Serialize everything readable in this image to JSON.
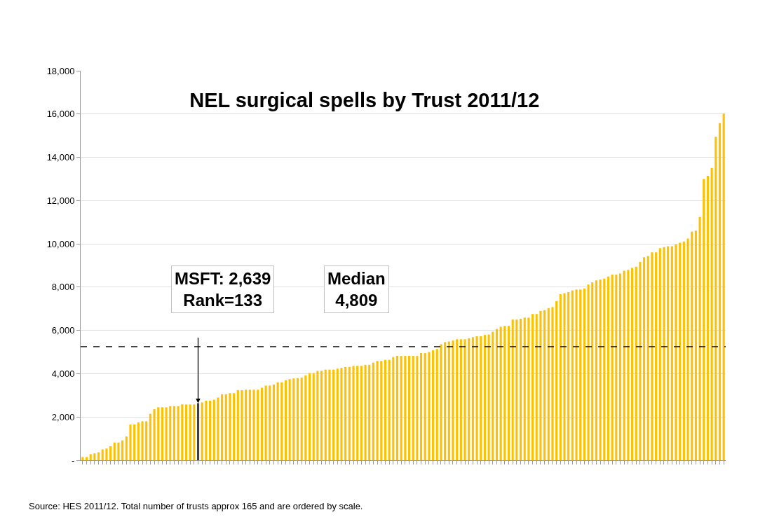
{
  "chart_data": {
    "type": "bar",
    "title": "NEL surgical spells by Trust 2011/12",
    "categories": [
      null,
      null,
      null,
      null,
      null,
      null,
      null,
      null,
      null,
      null,
      null,
      null,
      null,
      null,
      null,
      null,
      null,
      null,
      null,
      null,
      null,
      null,
      null,
      null,
      null,
      null,
      null,
      null,
      null,
      null,
      null,
      null,
      null,
      null,
      null,
      null,
      null,
      null,
      null,
      null,
      null,
      null,
      null,
      null,
      null,
      null,
      null,
      null,
      null,
      null,
      null,
      null,
      null,
      null,
      null,
      null,
      null,
      null,
      null,
      null,
      null,
      null,
      null,
      null,
      null,
      null,
      null,
      null,
      null,
      null,
      null,
      null,
      null,
      null,
      null,
      null,
      null,
      null,
      null,
      null,
      null,
      null,
      null,
      null,
      null,
      null,
      null,
      null,
      null,
      null,
      null,
      null,
      null,
      null,
      null,
      null,
      null,
      null,
      null,
      null,
      null,
      null,
      null,
      null,
      null,
      null,
      null,
      null,
      null,
      null,
      null,
      null,
      null,
      null,
      null,
      null,
      null,
      null,
      null,
      null,
      null,
      null,
      null,
      null,
      null,
      null,
      null,
      null,
      null,
      null,
      null,
      null,
      null,
      null,
      null,
      null,
      null,
      null,
      null,
      null,
      null,
      null,
      null,
      null,
      null,
      null,
      null,
      null,
      null,
      null,
      null,
      null,
      null,
      null,
      null,
      null,
      null,
      null,
      null,
      null,
      null,
      null
    ],
    "values": [
      150,
      150,
      280,
      320,
      370,
      500,
      540,
      650,
      820,
      820,
      920,
      1100,
      1650,
      1650,
      1750,
      1800,
      1800,
      2150,
      2360,
      2450,
      2450,
      2450,
      2500,
      2500,
      2500,
      2580,
      2580,
      2580,
      2580,
      2640,
      2670,
      2750,
      2750,
      2800,
      2900,
      3050,
      3050,
      3100,
      3100,
      3240,
      3240,
      3260,
      3260,
      3260,
      3260,
      3350,
      3450,
      3450,
      3500,
      3600,
      3600,
      3700,
      3750,
      3780,
      3800,
      3820,
      3920,
      4030,
      4030,
      4130,
      4130,
      4190,
      4190,
      4190,
      4230,
      4270,
      4310,
      4310,
      4360,
      4360,
      4360,
      4410,
      4410,
      4510,
      4590,
      4590,
      4640,
      4640,
      4770,
      4820,
      4820,
      4820,
      4820,
      4820,
      4820,
      4950,
      4950,
      5000,
      5080,
      5140,
      5360,
      5460,
      5490,
      5530,
      5590,
      5590,
      5590,
      5640,
      5690,
      5730,
      5730,
      5790,
      5810,
      5940,
      6070,
      6170,
      6210,
      6210,
      6500,
      6500,
      6540,
      6590,
      6590,
      6760,
      6760,
      6900,
      6940,
      7030,
      7080,
      7350,
      7670,
      7720,
      7770,
      7850,
      7890,
      7890,
      7940,
      8120,
      8220,
      8310,
      8350,
      8390,
      8490,
      8580,
      8580,
      8630,
      8760,
      8800,
      8890,
      8940,
      9160,
      9380,
      9440,
      9610,
      9610,
      9800,
      9850,
      9890,
      9890,
      9980,
      10050,
      10110,
      10250,
      10560,
      10610,
      11240,
      13000,
      13140,
      13510,
      14950,
      15580,
      16020
    ],
    "colors": [
      "#ffc000",
      "#ffc000",
      "#ffc000",
      "#ffc000",
      "#ffc000",
      "#ffc000",
      "#ffc000",
      "#ffc000",
      "#ffc000",
      "#ffc000",
      "#ffc000",
      "#ffc000",
      "#ffc000",
      "#ffc000",
      "#ffc000",
      "#ffc000",
      "#ffc000",
      "#ffc000",
      "#ffc000",
      "#ffc000",
      "#ffc000",
      "#ffc000",
      "#ffc000",
      "#ffc000",
      "#ffc000",
      "#ffc000",
      "#ffc000",
      "#ffc000",
      "#ffc000",
      "#404040",
      "#ffc000",
      "#ffc000",
      "#ffc000",
      "#ffc000",
      "#ffc000",
      "#ffc000",
      "#ffc000",
      "#ffc000",
      "#ffc000",
      "#ffc000",
      "#ffc000",
      "#ffc000",
      "#ffc000",
      "#ffc000",
      "#ffc000",
      "#ffc000",
      "#ffc000",
      "#ffc000",
      "#ffc000",
      "#ffc000",
      "#ffc000",
      "#ffc000",
      "#ffc000",
      "#ffc000",
      "#ffc000",
      "#ffc000",
      "#ffc000",
      "#ffc000",
      "#ffc000",
      "#ffc000",
      "#ffc000",
      "#ffc000",
      "#ffc000",
      "#ffc000",
      "#ffc000",
      "#ffc000",
      "#ffc000",
      "#ffc000",
      "#ffc000",
      "#ffc000",
      "#ffc000",
      "#ffc000",
      "#ffc000",
      "#ffc000",
      "#ffc000",
      "#ffc000",
      "#ffc000",
      "#ffc000",
      "#ffc000",
      "#ffc000",
      "#ffc000",
      "#ffc000",
      "#ffc000",
      "#ffc000",
      "#ffc000",
      "#ffc000",
      "#ffc000",
      "#ffc000",
      "#ffc000",
      "#ffc000",
      "#ffc000",
      "#ffc000",
      "#ffc000",
      "#ffc000",
      "#ffc000",
      "#ffc000",
      "#ffc000",
      "#ffc000",
      "#ffc000",
      "#ffc000",
      "#ffc000",
      "#ffc000",
      "#ffc000",
      "#ffc000",
      "#ffc000",
      "#ffc000",
      "#ffc000",
      "#ffc000",
      "#ffc000",
      "#ffc000",
      "#ffc000",
      "#ffc000",
      "#ffc000",
      "#ffc000",
      "#ffc000",
      "#ffc000",
      "#ffc000",
      "#ffc000",
      "#ffc000",
      "#ffc000",
      "#ffc000",
      "#ffc000",
      "#ffc000",
      "#ffc000",
      "#ffc000",
      "#ffc000",
      "#ffc000",
      "#ffc000",
      "#ffc000",
      "#ffc000",
      "#ffc000",
      "#ffc000",
      "#ffc000",
      "#ffc000",
      "#ffc000",
      "#ffc000",
      "#ffc000",
      "#ffc000",
      "#ffc000",
      "#ffc000",
      "#ffc000",
      "#ffc000",
      "#ffc000",
      "#ffc000",
      "#ffc000",
      "#ffc000",
      "#ffc000",
      "#ffc000",
      "#ffc000",
      "#ffc000",
      "#ffc000",
      "#ffc000",
      "#ffc000",
      "#ffc000",
      "#ffc000",
      "#ffc000",
      "#ffc000",
      "#ffc000",
      "#ffc000",
      "#ffc000",
      "#ffc000",
      "#ffc000"
    ],
    "ylim": [
      0,
      18000
    ],
    "yticks": [
      {
        "value": 0,
        "label": "-"
      },
      {
        "value": 2000,
        "label": "2,000"
      },
      {
        "value": 4000,
        "label": "4,000"
      },
      {
        "value": 6000,
        "label": "6,000"
      },
      {
        "value": 8000,
        "label": "8,000"
      },
      {
        "value": 10000,
        "label": "10,000"
      },
      {
        "value": 12000,
        "label": "12,000"
      },
      {
        "value": 14000,
        "label": "14,000"
      },
      {
        "value": 16000,
        "label": "16,000"
      },
      {
        "value": 18000,
        "label": "18,000"
      }
    ],
    "grid": "y",
    "tick_labels": "y",
    "ref_lines": [
      {
        "axis": "y",
        "value": 5250,
        "color": "#000000",
        "line_style": "dashed"
      }
    ],
    "annotations": [
      "MSFT: 2,639\nRank=133",
      "Median\n4,809",
      "Source: HES 2011/12. Total number of trusts approx 165 and are ordered by scale."
    ]
  }
}
